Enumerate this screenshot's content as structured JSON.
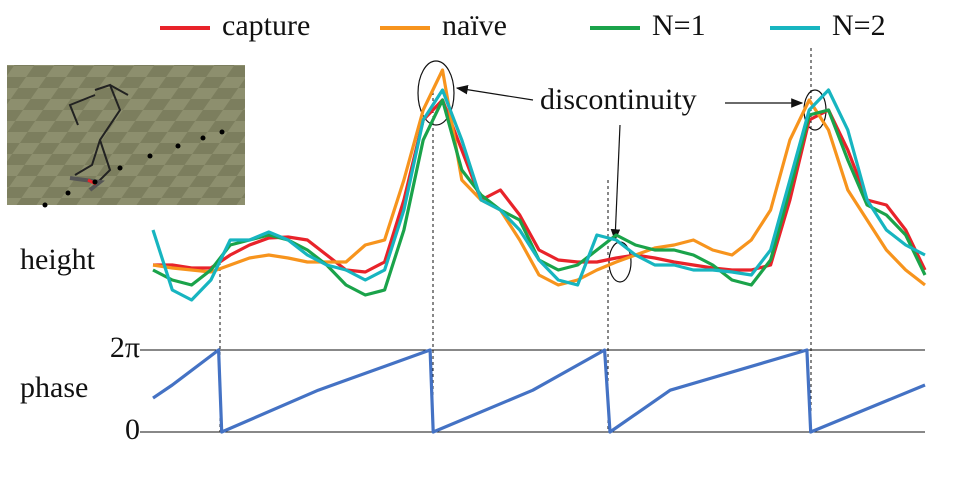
{
  "chart_data": [
    {
      "type": "line",
      "y_label": "height",
      "annotation": "discontinuity",
      "xlim": [
        0,
        100
      ],
      "ylim": [
        0,
        225
      ],
      "x": [
        0,
        2.5,
        5,
        7.5,
        10,
        12.5,
        15,
        17.5,
        20,
        22.5,
        25,
        27.5,
        30,
        32.5,
        35,
        37.5,
        40,
        42.5,
        45,
        47.5,
        50,
        52.5,
        55,
        57.5,
        60,
        62.5,
        65,
        67.5,
        70,
        72.5,
        75,
        77.5,
        80,
        82.5,
        85,
        87.5,
        90,
        92.5,
        95,
        97.5,
        100
      ],
      "series": [
        {
          "name": "capture",
          "color": "#e8232a",
          "values": [
            40,
            40,
            37,
            37,
            50,
            60,
            67,
            68,
            65,
            50,
            35,
            33,
            43,
            105,
            185,
            205,
            155,
            105,
            115,
            90,
            55,
            45,
            43,
            43,
            47,
            50,
            47,
            43,
            40,
            37,
            35,
            35,
            40,
            105,
            185,
            195,
            155,
            105,
            100,
            75,
            35
          ]
        },
        {
          "name": "naïve",
          "color": "#f7941d",
          "values": [
            40,
            37,
            35,
            33,
            40,
            47,
            50,
            47,
            43,
            43,
            43,
            60,
            65,
            125,
            195,
            235,
            125,
            105,
            95,
            65,
            30,
            20,
            25,
            35,
            43,
            50,
            57,
            60,
            65,
            55,
            50,
            65,
            95,
            165,
            205,
            175,
            115,
            85,
            55,
            35,
            20
          ]
        },
        {
          "name": "N=1",
          "color": "#1aa34a",
          "values": [
            35,
            25,
            20,
            35,
            60,
            65,
            70,
            65,
            55,
            40,
            20,
            10,
            15,
            75,
            165,
            205,
            135,
            110,
            95,
            85,
            45,
            35,
            40,
            55,
            70,
            60,
            55,
            55,
            50,
            40,
            25,
            20,
            45,
            115,
            190,
            195,
            145,
            100,
            90,
            70,
            30
          ]
        },
        {
          "name": "N=2",
          "color": "#17b5c0",
          "values": [
            75,
            15,
            5,
            25,
            65,
            65,
            73,
            65,
            50,
            40,
            35,
            25,
            35,
            95,
            185,
            215,
            165,
            105,
            95,
            75,
            45,
            25,
            20,
            70,
            65,
            50,
            40,
            40,
            35,
            35,
            33,
            30,
            55,
            125,
            195,
            215,
            175,
            105,
            75,
            60,
            50
          ]
        }
      ]
    },
    {
      "type": "line",
      "y_label": "phase",
      "xlim": [
        0,
        100
      ],
      "ylim": [
        0,
        6.283
      ],
      "yticks": [
        {
          "value": 0,
          "label": "0"
        },
        {
          "value": 6.283,
          "label": "2π"
        }
      ],
      "grid": true,
      "x": [
        0,
        2.5,
        8.5,
        8.9,
        21.4,
        35.9,
        36.3,
        49.2,
        58.5,
        59.2,
        67,
        84.7,
        85.2,
        100
      ],
      "values": [
        2.6,
        3.6,
        6.28,
        0,
        3.2,
        6.28,
        0,
        3.2,
        6.28,
        0,
        3.2,
        6.28,
        0,
        3.6
      ],
      "color": "#4472c4"
    }
  ]
}
